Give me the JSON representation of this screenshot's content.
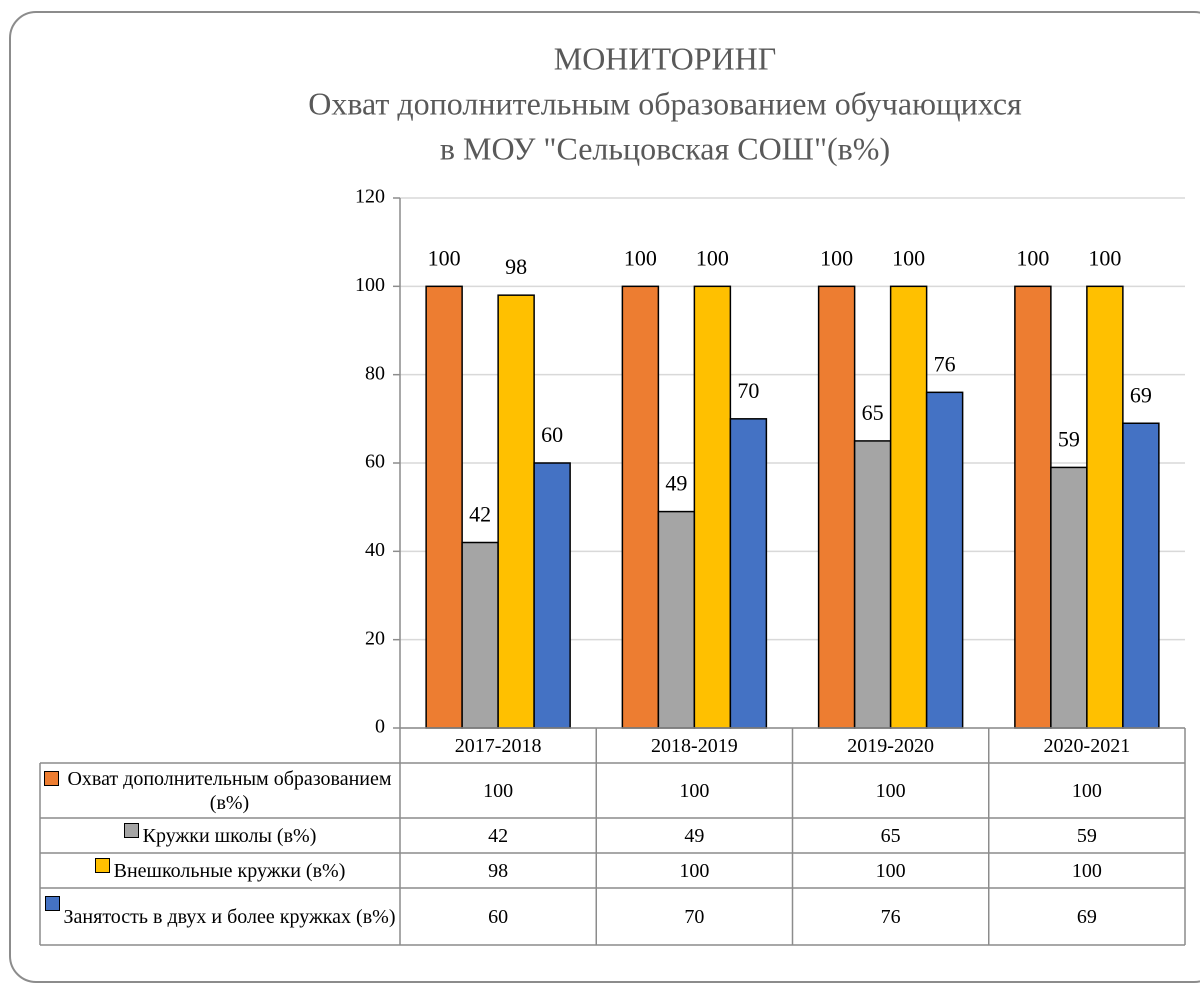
{
  "chart_data": {
    "type": "bar",
    "title": "МОНИТОРИНГ",
    "subtitle": [
      "Охват дополнительным образованием обучающихся",
      "в МОУ \"Сельцовская СОШ\"(в%)"
    ],
    "categories": [
      "2017-2018",
      "2018-2019",
      "2019-2020",
      "2020-2021"
    ],
    "series": [
      {
        "name": "Охват дополнительным образованием (в%)",
        "color": "#ed7d31",
        "values": [
          100,
          100,
          100,
          100
        ]
      },
      {
        "name": "Кружки школы (в%)",
        "color": "#a5a5a5",
        "values": [
          42,
          49,
          65,
          59
        ]
      },
      {
        "name": "Внешкольные кружки (в%)",
        "color": "#ffc000",
        "values": [
          98,
          100,
          100,
          100
        ]
      },
      {
        "name": "Занятость в двух и более кружках (в%)",
        "color": "#4472c4",
        "values": [
          60,
          70,
          76,
          69
        ]
      }
    ],
    "ylim": [
      0,
      120
    ],
    "yticks": [
      0,
      20,
      40,
      60,
      80,
      100,
      120
    ],
    "grid": true
  }
}
